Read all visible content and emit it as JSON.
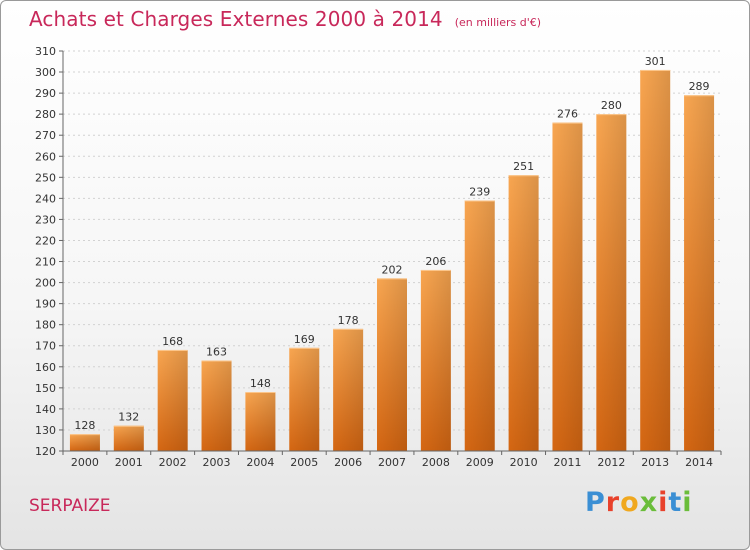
{
  "title": "Achats et Charges Externes 2000 à 2014",
  "unit": "(en milliers d'€)",
  "commune": "SERPAIZE",
  "logo": "Proxiti",
  "colors": {
    "bar_light": "#f7a04a",
    "bar_dark": "#d66a14",
    "title": "#c8285a"
  },
  "chart_data": {
    "type": "bar",
    "categories": [
      "2000",
      "2001",
      "2002",
      "2003",
      "2004",
      "2005",
      "2006",
      "2007",
      "2008",
      "2009",
      "2010",
      "2011",
      "2012",
      "2013",
      "2014"
    ],
    "values": [
      128,
      132,
      168,
      163,
      148,
      169,
      178,
      202,
      206,
      239,
      251,
      276,
      280,
      301,
      289
    ],
    "ylim": [
      120,
      310
    ],
    "yticks": [
      120,
      130,
      140,
      150,
      160,
      170,
      180,
      190,
      200,
      210,
      220,
      230,
      240,
      250,
      260,
      270,
      280,
      290,
      300,
      310
    ],
    "grid": true
  }
}
